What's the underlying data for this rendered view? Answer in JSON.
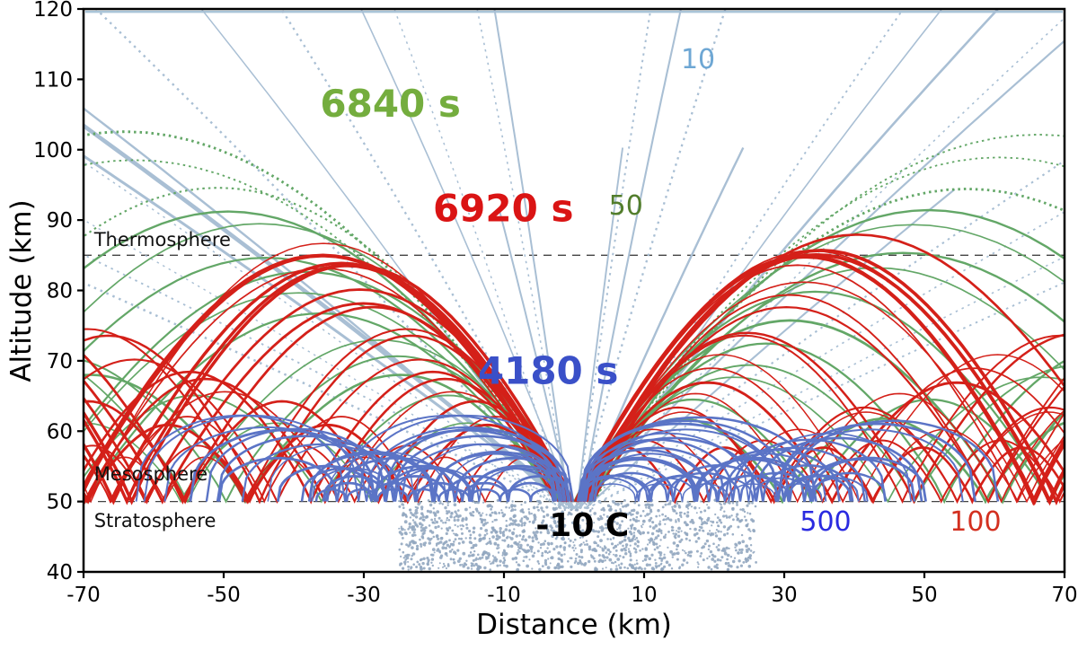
{
  "chart_data": {
    "type": "line",
    "description": "Infrasound / acoustic ray-tracing plot: ray paths of different periods launched from a stratospheric source, altitude vs horizontal distance",
    "xlabel": "Distance (km)",
    "ylabel": "Altitude (km)",
    "xlim": [
      -70,
      70
    ],
    "ylim": [
      40,
      120
    ],
    "x_ticks": [
      -70,
      -50,
      -30,
      -10,
      10,
      30,
      50,
      70
    ],
    "y_ticks": [
      40,
      50,
      60,
      70,
      80,
      90,
      100,
      110,
      120
    ],
    "grid": false,
    "legend_position": "none",
    "boundaries": [
      {
        "name": "thermosphere-base",
        "altitude_km": 85,
        "style": "dashed"
      },
      {
        "name": "stratopause",
        "altitude_km": 50,
        "style": "dashed"
      }
    ],
    "layer_labels": [
      {
        "text": "Thermosphere",
        "x": -68.5,
        "alt": 86.3
      },
      {
        "text": "Mesosphere",
        "x": -68.5,
        "alt": 53.0
      },
      {
        "text": "Stratosphere",
        "x": -68.5,
        "alt": 46.4
      }
    ],
    "annotations": [
      {
        "text": "6840 s",
        "x": -26.2,
        "alt": 104.7,
        "color": "#74ad3e",
        "bold": true,
        "size": 42
      },
      {
        "text": "6920 s",
        "x": -10.1,
        "alt": 89.8,
        "color": "#da1414",
        "bold": true,
        "size": 42
      },
      {
        "text": "4180 s",
        "x": -3.7,
        "alt": 66.7,
        "color": "#3a50c8",
        "bold": true,
        "size": 42
      },
      {
        "text": "10",
        "x": 17.7,
        "alt": 111.6,
        "color": "#6ea7d4",
        "bold": false,
        "size": 30
      },
      {
        "text": "50",
        "x": 7.4,
        "alt": 90.8,
        "color": "#527d2c",
        "bold": false,
        "size": 30
      },
      {
        "text": "500",
        "x": 35.9,
        "alt": 45.9,
        "color": "#2a2ae0",
        "bold": false,
        "size": 30
      },
      {
        "text": "100",
        "x": 57.3,
        "alt": 45.9,
        "color": "#d33020",
        "bold": false,
        "size": 30
      },
      {
        "text": "-10 C",
        "x": 1.2,
        "alt": 45.1,
        "color": "#000000",
        "bold": true,
        "size": 36
      }
    ],
    "ray_families": [
      {
        "name": "escape-rays",
        "period_label": "10",
        "color": "#a9bfd4",
        "type": "escape",
        "count_per_side": 13,
        "seed": 7,
        "top_alt": 121.5,
        "launch_alt": 49.0,
        "specials": {
          "left": [
            {
              "f": 0.72,
              "w": 4.6
            },
            {
              "f": 0.76,
              "w": 3.0
            }
          ],
          "right": [
            {
              "f": 0.55,
              "w": 2.6
            },
            {
              "f": 0.63,
              "w": 2.2
            }
          ]
        },
        "top_line_alt": 119.6
      },
      {
        "name": "thermospheric-rays",
        "travel_time_label": "6840 s",
        "period_label": "50",
        "color": "#63a767",
        "type": "duct",
        "apex_min": 61,
        "apex_max": 101,
        "span_factor": 2.35,
        "arc_shape": 0.85,
        "dotted_above_apex": 92,
        "count_per_side": 14,
        "seed": 11,
        "x_cap": 72
      },
      {
        "name": "mesospheric-rays",
        "travel_time_label": "6920 s",
        "period_label": "100",
        "color": "#d42019",
        "type": "duct",
        "apex_min": 56,
        "apex_max": 86,
        "span_factor": 1.95,
        "arc_shape": 0.9,
        "dotted_above_apex": 999,
        "count_per_side": 17,
        "seed": 23,
        "x_cap": 72,
        "bundle": {
          "count": 4,
          "apex_lo": 83.5,
          "apex_hi": 86,
          "w_lo": 3.0,
          "w_hi": 4.2
        }
      },
      {
        "name": "stratospheric-rays",
        "travel_time_label": "4180 s",
        "period_label": "500",
        "color": "#5b74c6",
        "type": "duct",
        "apex_min": 51.5,
        "apex_max": 61.5,
        "span_factor": 2.6,
        "arc_shape": 0.35,
        "dotted_above_apex": 999,
        "count_per_side": 18,
        "seed": 37,
        "x_cap": 34.5
      }
    ],
    "source_cloud": {
      "temperature_label": "-10 C",
      "x_range": [
        -25,
        26
      ],
      "alt_range": [
        40.3,
        50.2
      ],
      "color": "#92a7c0",
      "points": 1400
    }
  }
}
